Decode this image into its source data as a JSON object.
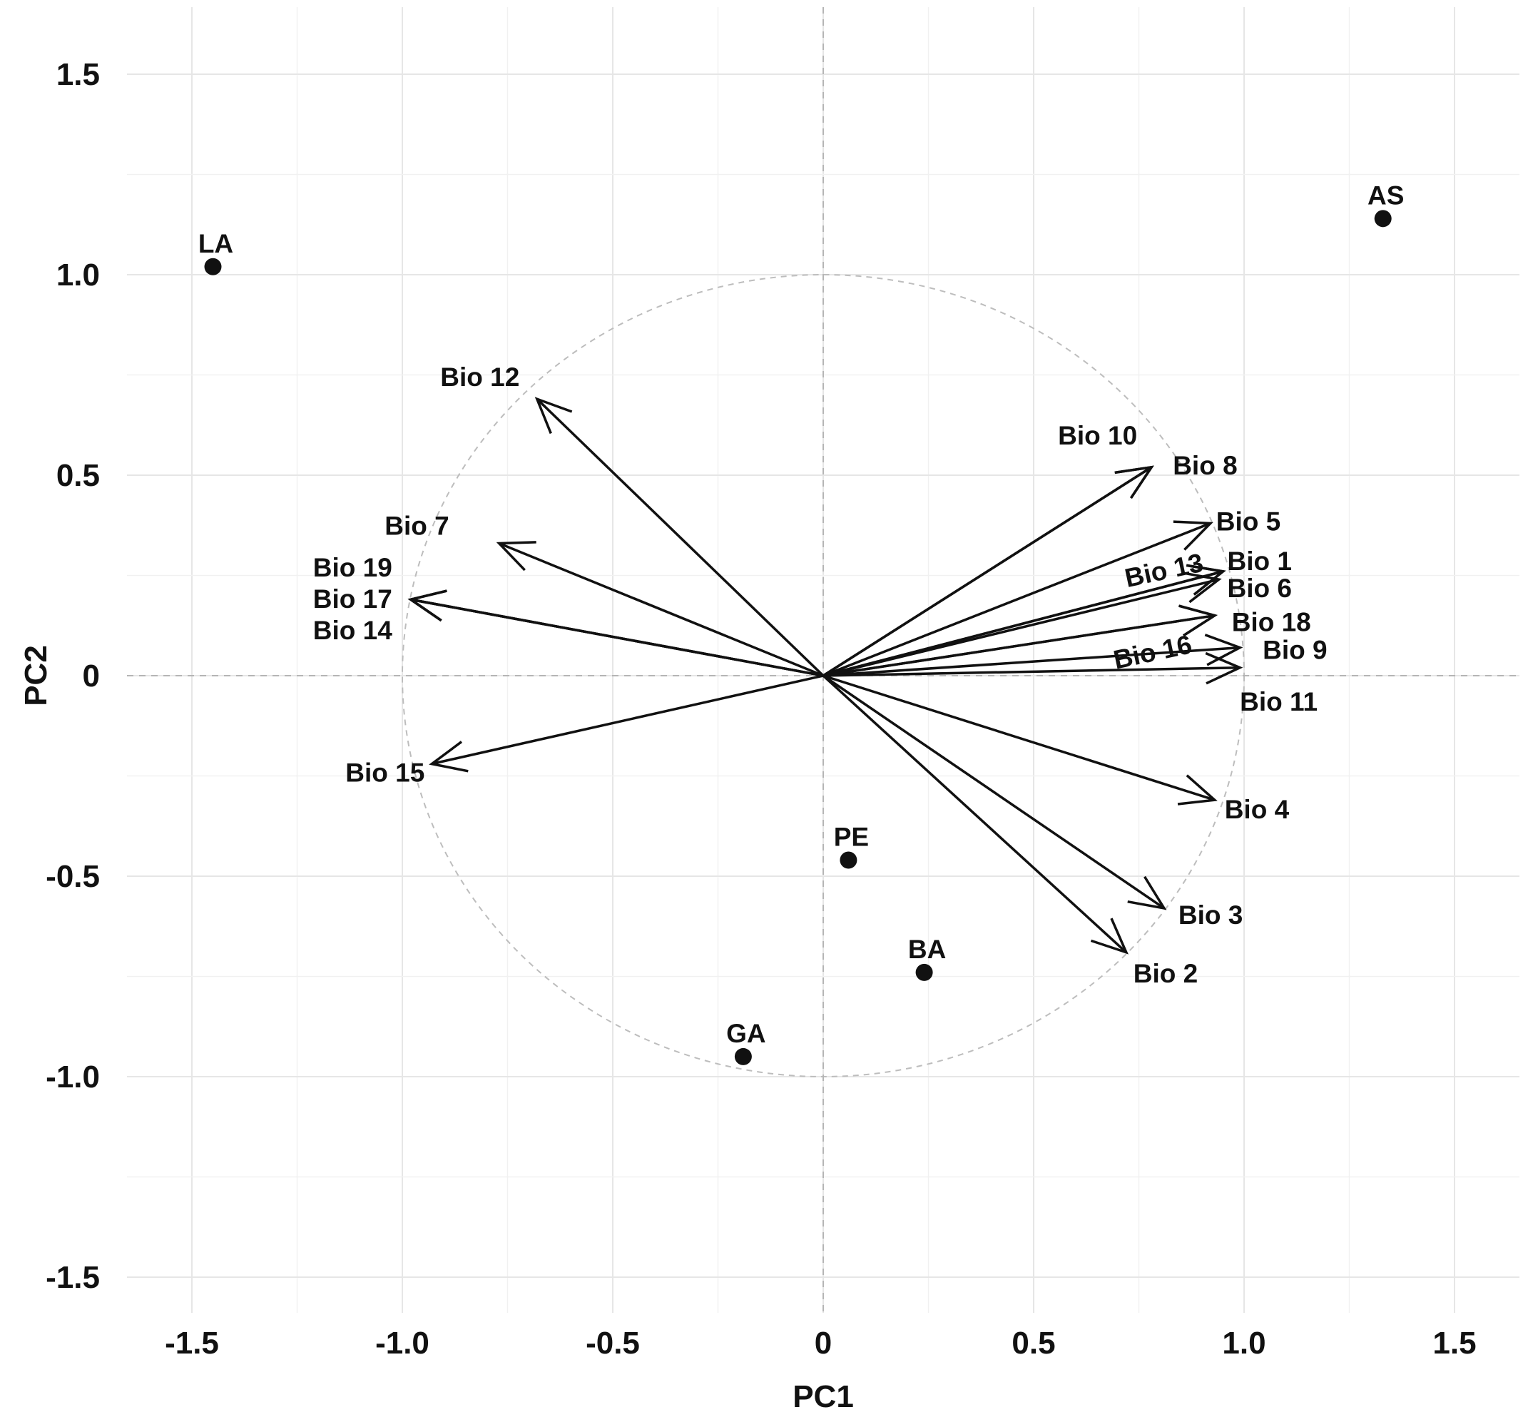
{
  "chart_data": {
    "type": "scatter",
    "title": "",
    "xlabel": "PC1",
    "ylabel": "PC2",
    "xlim": [
      -1.65,
      1.65
    ],
    "ylim": [
      -1.62,
      1.65
    ],
    "grid": true,
    "xticks": [
      {
        "value": -1.5,
        "label": "-1.5"
      },
      {
        "value": -1.0,
        "label": "-1.0"
      },
      {
        "value": -0.5,
        "label": "-0.5"
      },
      {
        "value": 0,
        "label": "0"
      },
      {
        "value": 0.5,
        "label": "0.5"
      },
      {
        "value": 1.0,
        "label": "1.0"
      },
      {
        "value": 1.5,
        "label": "1.5"
      }
    ],
    "yticks": [
      {
        "value": 1.5,
        "label": "1.5"
      },
      {
        "value": 1.0,
        "label": "1.0"
      },
      {
        "value": 0.5,
        "label": "0.5"
      },
      {
        "value": 0,
        "label": "0"
      },
      {
        "value": -0.5,
        "label": "-0.5"
      },
      {
        "value": -1.0,
        "label": "-1.0"
      },
      {
        "value": -1.5,
        "label": "-1.5"
      }
    ],
    "unit_circle_radius": 1.0,
    "sites": [
      {
        "name": "LA",
        "x": -1.45,
        "y": 1.02
      },
      {
        "name": "AS",
        "x": 1.33,
        "y": 1.14
      },
      {
        "name": "PE",
        "x": 0.06,
        "y": -0.46
      },
      {
        "name": "BA",
        "x": 0.24,
        "y": -0.74
      },
      {
        "name": "GA",
        "x": -0.19,
        "y": -0.95
      }
    ],
    "variables": [
      {
        "name": "Bio 12",
        "x": -0.68,
        "y": 0.69
      },
      {
        "name": "Bio 7",
        "x": -0.77,
        "y": 0.33
      },
      {
        "name": "Bio 19",
        "x": -0.98,
        "y": 0.19
      },
      {
        "name": "Bio 17",
        "x": -0.98,
        "y": 0.19
      },
      {
        "name": "Bio 14",
        "x": -0.98,
        "y": 0.19
      },
      {
        "name": "Bio 15",
        "x": -0.93,
        "y": -0.22
      },
      {
        "name": "Bio 10",
        "x": 0.78,
        "y": 0.52
      },
      {
        "name": "Bio 8",
        "x": 0.78,
        "y": 0.52
      },
      {
        "name": "Bio 5",
        "x": 0.92,
        "y": 0.38
      },
      {
        "name": "Bio 1",
        "x": 0.95,
        "y": 0.26
      },
      {
        "name": "Bio 6",
        "x": 0.95,
        "y": 0.26
      },
      {
        "name": "Bio 13",
        "x": 0.94,
        "y": 0.24
      },
      {
        "name": "Bio 16",
        "x": 0.93,
        "y": 0.15
      },
      {
        "name": "Bio 18",
        "x": 0.93,
        "y": 0.15
      },
      {
        "name": "Bio 9",
        "x": 0.99,
        "y": 0.07
      },
      {
        "name": "Bio 11",
        "x": 0.99,
        "y": 0.02
      },
      {
        "name": "Bio 4",
        "x": 0.93,
        "y": -0.31
      },
      {
        "name": "Bio 3",
        "x": 0.81,
        "y": -0.58
      },
      {
        "name": "Bio 2",
        "x": 0.72,
        "y": -0.69
      }
    ]
  }
}
